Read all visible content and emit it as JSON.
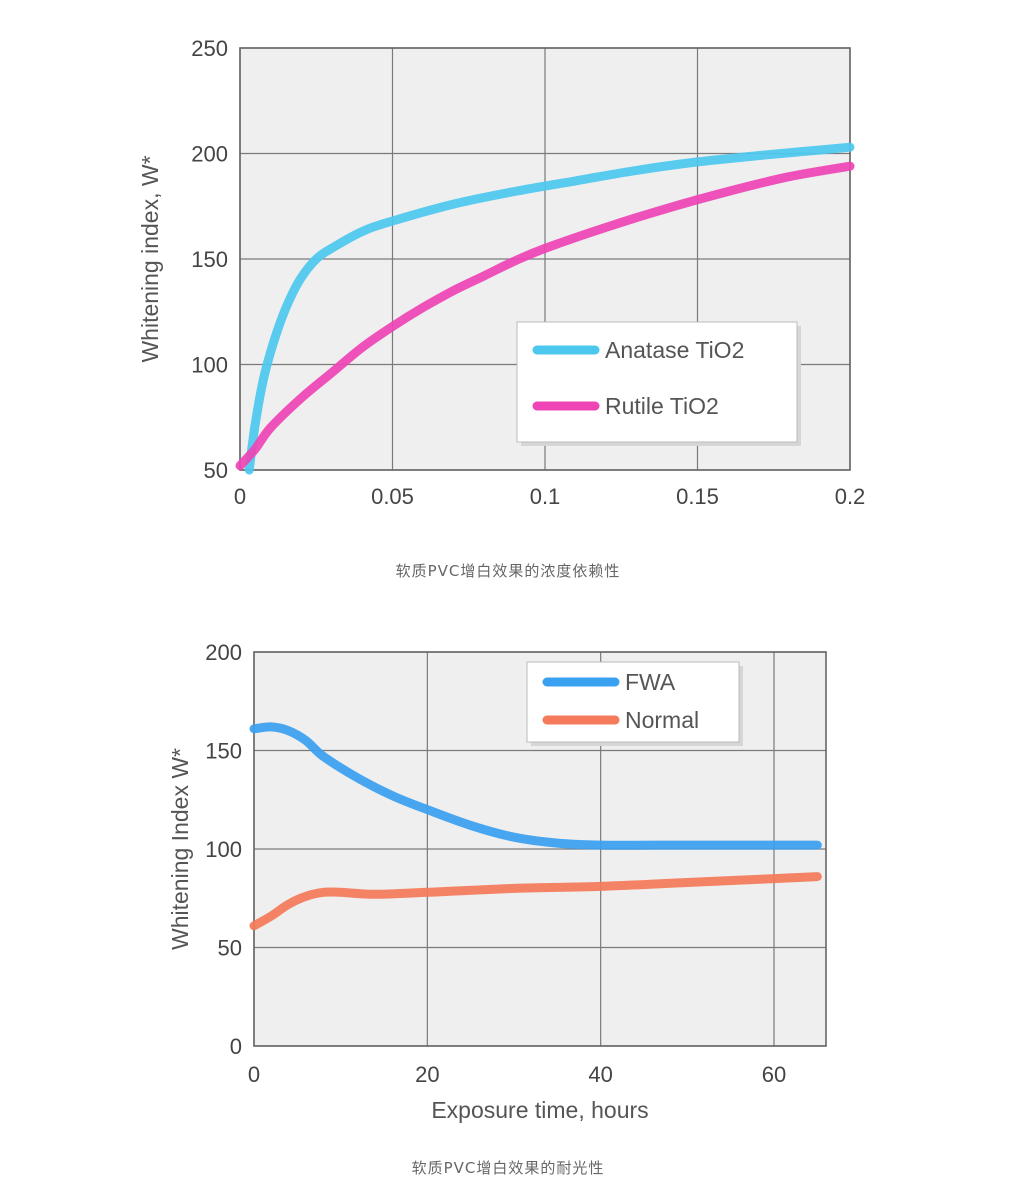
{
  "captions": {
    "chart1": "软质PVC增白效果的浓度依赖性",
    "chart2": "软质PVC增白效果的耐光性"
  },
  "chart_data": [
    {
      "type": "line",
      "xlabel": "",
      "ylabel": "Whitening index, W*",
      "xlim": [
        0,
        0.2
      ],
      "ylim": [
        50,
        250
      ],
      "xticks": [
        "0",
        "0.05",
        "0.1",
        "0.15",
        "0.2"
      ],
      "yticks": [
        "50",
        "100",
        "150",
        "200",
        "250"
      ],
      "grid": true,
      "legend_position": "lower-right",
      "series": [
        {
          "name": "Anatase TiO2",
          "color": "#4cc8ef",
          "points": [
            [
              0.003,
              50
            ],
            [
              0.005,
              72
            ],
            [
              0.008,
              95
            ],
            [
              0.012,
              115
            ],
            [
              0.016,
              130
            ],
            [
              0.02,
              141
            ],
            [
              0.025,
              150
            ],
            [
              0.03,
              155
            ],
            [
              0.04,
              163
            ],
            [
              0.05,
              168
            ],
            [
              0.07,
              176
            ],
            [
              0.09,
              182
            ],
            [
              0.11,
              187
            ],
            [
              0.13,
              192
            ],
            [
              0.15,
              196
            ],
            [
              0.17,
              199
            ],
            [
              0.185,
              201
            ],
            [
              0.2,
              203
            ]
          ]
        },
        {
          "name": "Rutile TiO2",
          "color": "#ee44b5",
          "points": [
            [
              0,
              52
            ],
            [
              0.005,
              60
            ],
            [
              0.01,
              70
            ],
            [
              0.02,
              84
            ],
            [
              0.03,
              96
            ],
            [
              0.04,
              108
            ],
            [
              0.05,
              118
            ],
            [
              0.06,
              127
            ],
            [
              0.07,
              135
            ],
            [
              0.08,
              142
            ],
            [
              0.09,
              149
            ],
            [
              0.1,
              155
            ],
            [
              0.12,
              165
            ],
            [
              0.14,
              174
            ],
            [
              0.16,
              182
            ],
            [
              0.18,
              189
            ],
            [
              0.2,
              194
            ]
          ]
        }
      ]
    },
    {
      "type": "line",
      "xlabel": "Exposure time, hours",
      "ylabel": "Whitening Index W*",
      "xlim": [
        0,
        66
      ],
      "ylim": [
        0,
        200
      ],
      "xticks": [
        "0",
        "20",
        "40",
        "60"
      ],
      "yticks": [
        "0",
        "50",
        "100",
        "150",
        "200"
      ],
      "grid": true,
      "legend_position": "top-right",
      "series": [
        {
          "name": "FWA",
          "color": "#3aa0f0",
          "points": [
            [
              0,
              161
            ],
            [
              2,
              162
            ],
            [
              4,
              160
            ],
            [
              6,
              155
            ],
            [
              8,
              147
            ],
            [
              12,
              136
            ],
            [
              16,
              127
            ],
            [
              20,
              120
            ],
            [
              25,
              112
            ],
            [
              30,
              106
            ],
            [
              35,
              103
            ],
            [
              40,
              102
            ],
            [
              50,
              102
            ],
            [
              60,
              102
            ],
            [
              65,
              102
            ]
          ]
        },
        {
          "name": "Normal",
          "color": "#f47a5a",
          "points": [
            [
              0,
              61
            ],
            [
              2,
              66
            ],
            [
              4,
              72
            ],
            [
              6,
              76
            ],
            [
              8,
              78
            ],
            [
              10,
              78
            ],
            [
              14,
              77
            ],
            [
              20,
              78
            ],
            [
              30,
              80
            ],
            [
              40,
              81
            ],
            [
              50,
              83
            ],
            [
              60,
              85
            ],
            [
              65,
              86
            ]
          ]
        }
      ]
    }
  ]
}
